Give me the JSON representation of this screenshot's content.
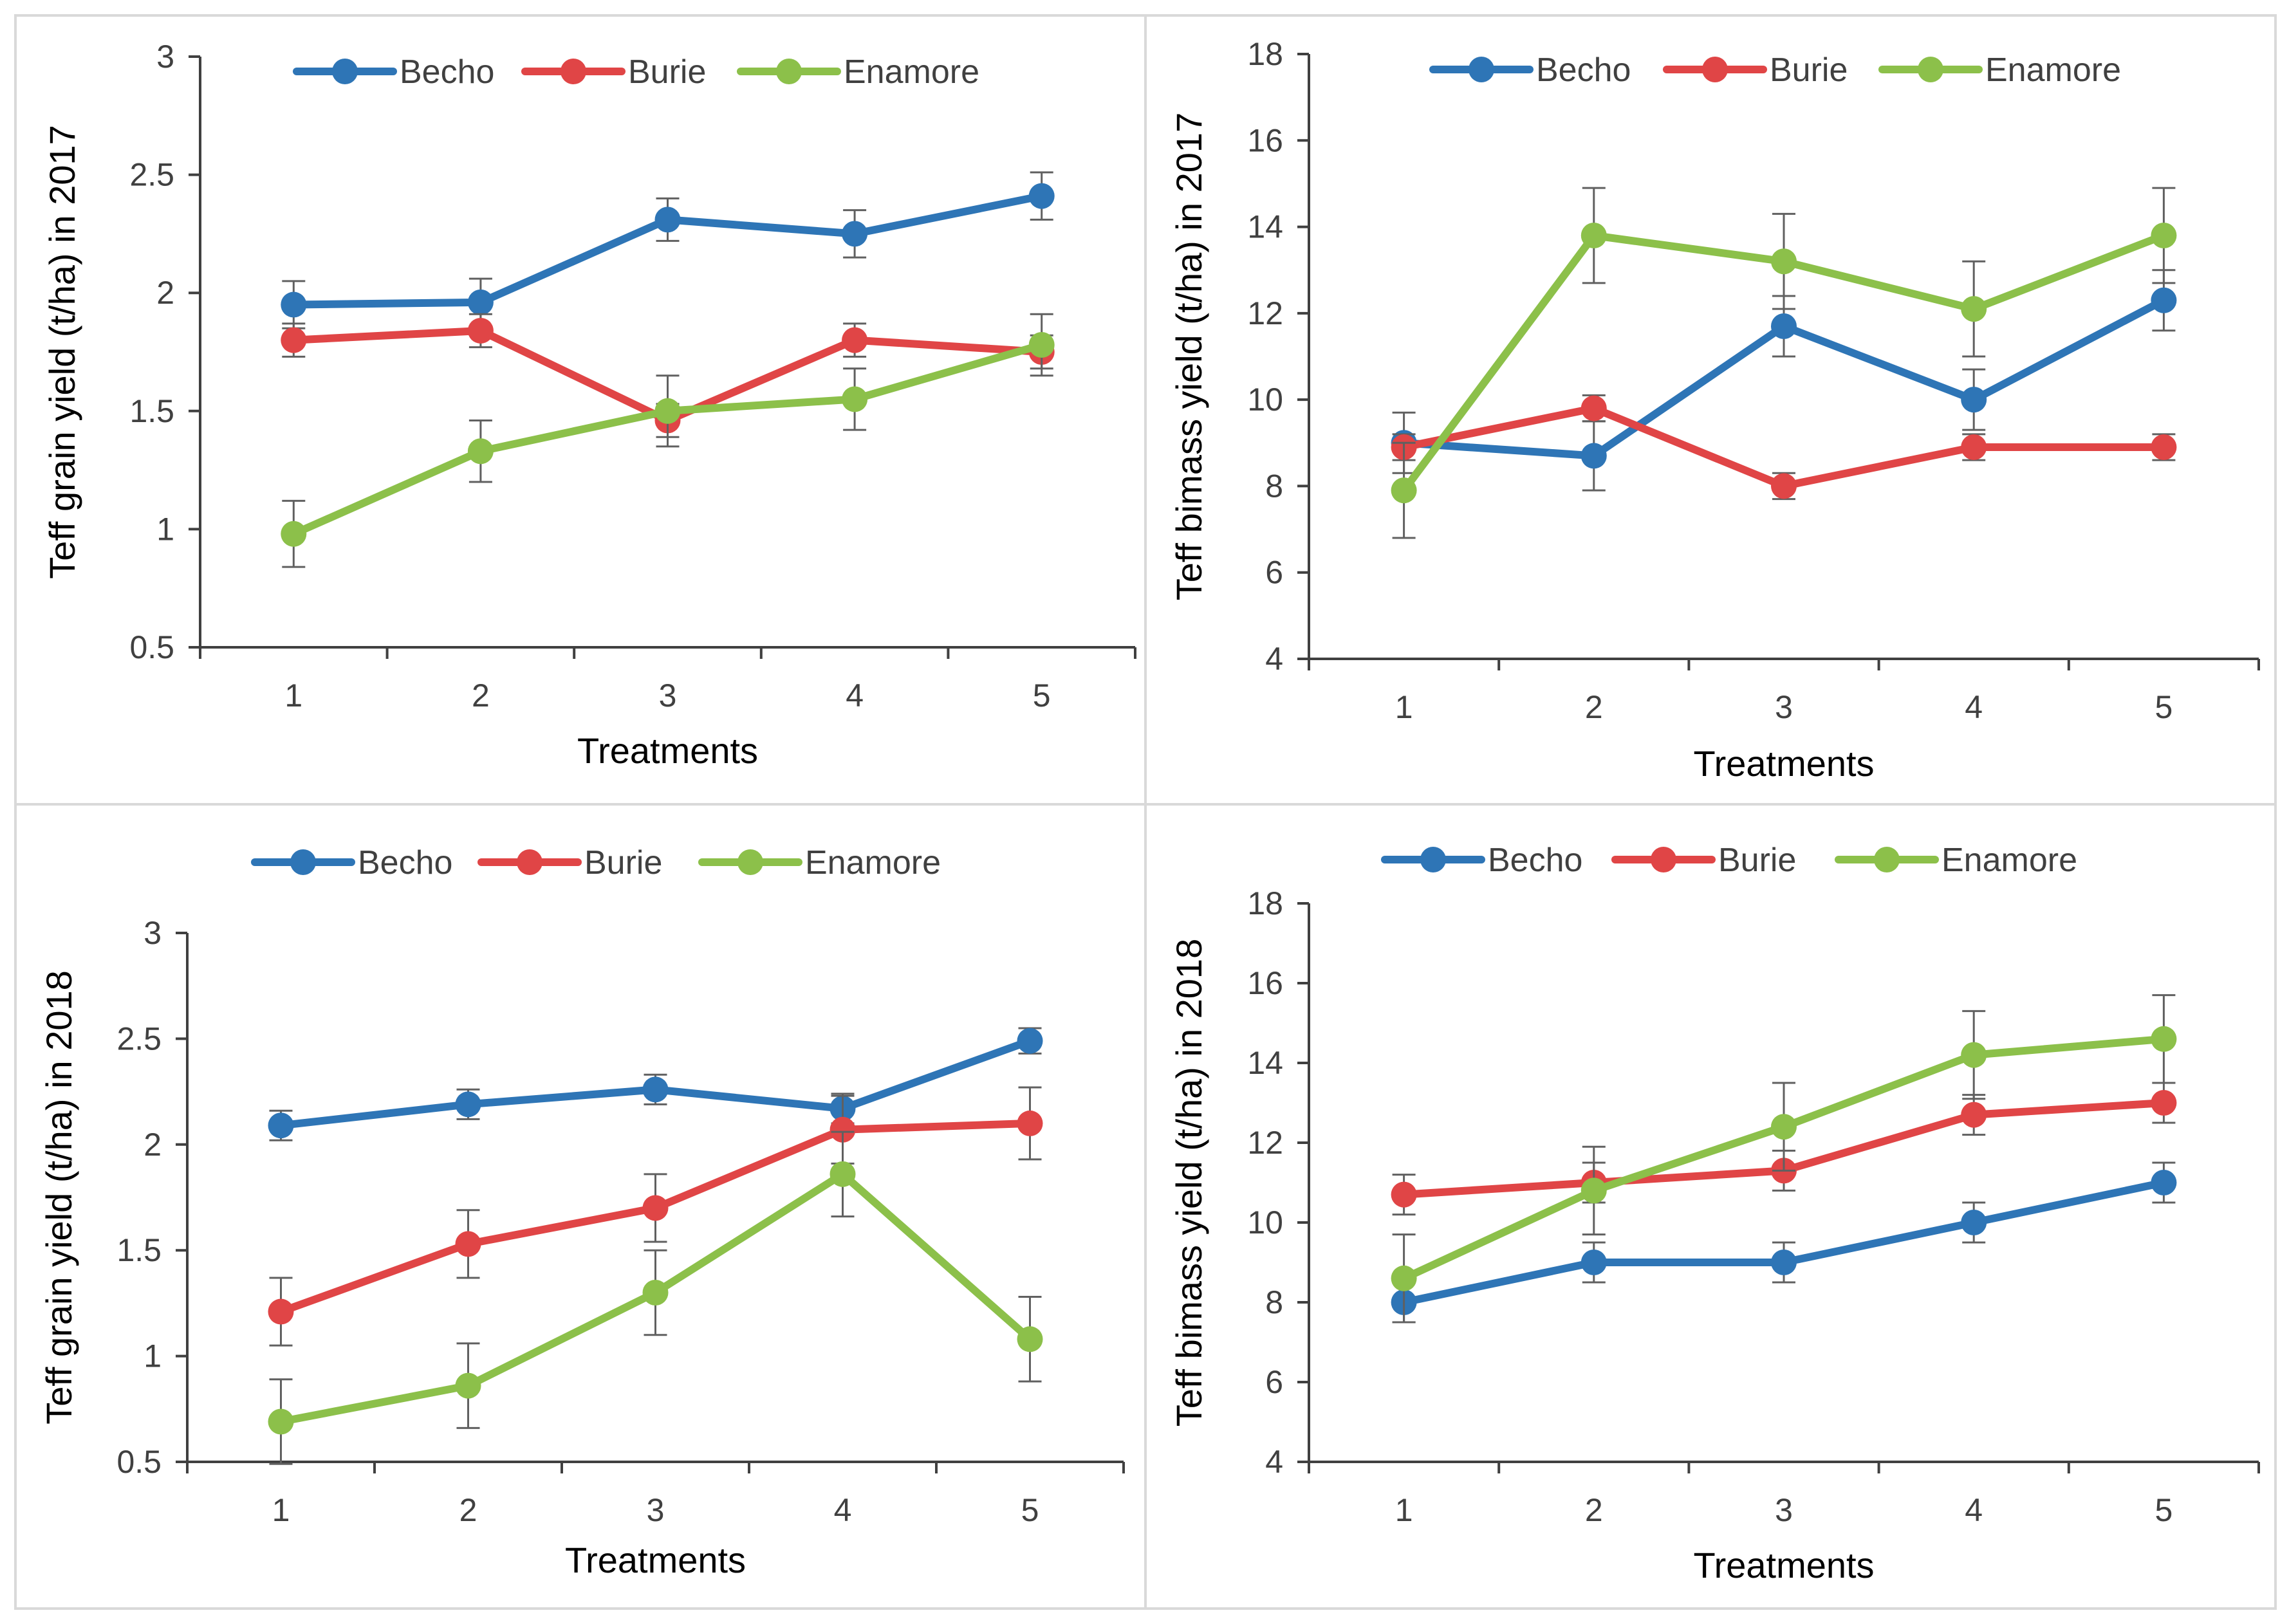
{
  "colors": {
    "Becho": "#2e75b6",
    "Burie": "#e04546",
    "Enamore": "#8cc04a",
    "axis": "#404040",
    "error": "#606060"
  },
  "chart_data": [
    {
      "type": "line",
      "title": "",
      "xlabel": "Treatments",
      "ylabel": "Teff grain yield (t/ha) in 2017",
      "categories": [
        "1",
        "2",
        "3",
        "4",
        "5"
      ],
      "ylim": [
        0.5,
        3
      ],
      "yticks": [
        "0.5",
        "1",
        "1.5",
        "2",
        "2.5",
        "3"
      ],
      "legend": "top",
      "series": [
        {
          "name": "Becho",
          "values": [
            1.95,
            1.96,
            2.31,
            2.25,
            2.41
          ],
          "errors": [
            0.1,
            0.1,
            0.09,
            0.1,
            0.1
          ]
        },
        {
          "name": "Burie",
          "values": [
            1.8,
            1.84,
            1.46,
            1.8,
            1.75
          ],
          "errors": [
            0.07,
            0.07,
            0.07,
            0.07,
            0.07
          ]
        },
        {
          "name": "Enamore",
          "values": [
            0.98,
            1.33,
            1.5,
            1.55,
            1.78
          ],
          "errors": [
            0.14,
            0.13,
            0.15,
            0.13,
            0.13
          ]
        }
      ]
    },
    {
      "type": "line",
      "title": "",
      "xlabel": "Treatments",
      "ylabel": "Teff bimass yield (t/ha) in 2017",
      "categories": [
        "1",
        "2",
        "3",
        "4",
        "5"
      ],
      "ylim": [
        4,
        18
      ],
      "yticks": [
        "4",
        "6",
        "8",
        "10",
        "12",
        "14",
        "16",
        "18"
      ],
      "legend": "top",
      "series": [
        {
          "name": "Becho",
          "values": [
            9.0,
            8.7,
            11.7,
            10.0,
            12.3
          ],
          "errors": [
            0.7,
            0.8,
            0.7,
            0.7,
            0.7
          ]
        },
        {
          "name": "Burie",
          "values": [
            8.9,
            9.8,
            8.0,
            8.9,
            8.9
          ],
          "errors": [
            0.3,
            0.3,
            0.3,
            0.3,
            0.3
          ]
        },
        {
          "name": "Enamore",
          "values": [
            7.9,
            13.8,
            13.2,
            12.1,
            13.8
          ],
          "errors": [
            1.1,
            1.1,
            1.1,
            1.1,
            1.1
          ]
        }
      ]
    },
    {
      "type": "line",
      "title": "",
      "xlabel": "Treatments",
      "ylabel": "Teff grain yield (t/ha) in 2018",
      "categories": [
        "1",
        "2",
        "3",
        "4",
        "5"
      ],
      "ylim": [
        0.5,
        3
      ],
      "yticks": [
        "0.5",
        "1",
        "1.5",
        "2",
        "2.5",
        "3"
      ],
      "legend": "top",
      "series": [
        {
          "name": "Becho",
          "values": [
            2.09,
            2.19,
            2.26,
            2.17,
            2.49
          ],
          "errors": [
            0.07,
            0.07,
            0.07,
            0.07,
            0.06
          ]
        },
        {
          "name": "Burie",
          "values": [
            1.21,
            1.53,
            1.7,
            2.07,
            2.1
          ],
          "errors": [
            0.16,
            0.16,
            0.16,
            0.16,
            0.17
          ]
        },
        {
          "name": "Enamore",
          "values": [
            0.69,
            0.86,
            1.3,
            1.86,
            1.08
          ],
          "errors": [
            0.2,
            0.2,
            0.2,
            0.2,
            0.2
          ]
        }
      ]
    },
    {
      "type": "line",
      "title": "",
      "xlabel": "Treatments",
      "ylabel": "Teff bimass yield (t/ha) in 2018",
      "categories": [
        "1",
        "2",
        "3",
        "4",
        "5"
      ],
      "ylim": [
        4,
        18
      ],
      "yticks": [
        "4",
        "6",
        "8",
        "10",
        "12",
        "14",
        "16",
        "18"
      ],
      "legend": "top",
      "series": [
        {
          "name": "Becho",
          "values": [
            8.0,
            9.0,
            9.0,
            10.0,
            11.0
          ],
          "errors": [
            0.5,
            0.5,
            0.5,
            0.5,
            0.5
          ]
        },
        {
          "name": "Burie",
          "values": [
            10.7,
            11.0,
            11.3,
            12.7,
            13.0
          ],
          "errors": [
            0.5,
            0.5,
            0.5,
            0.5,
            0.5
          ]
        },
        {
          "name": "Enamore",
          "values": [
            8.6,
            10.8,
            12.4,
            14.2,
            14.6
          ],
          "errors": [
            1.1,
            1.1,
            1.1,
            1.1,
            1.1
          ]
        }
      ]
    }
  ]
}
